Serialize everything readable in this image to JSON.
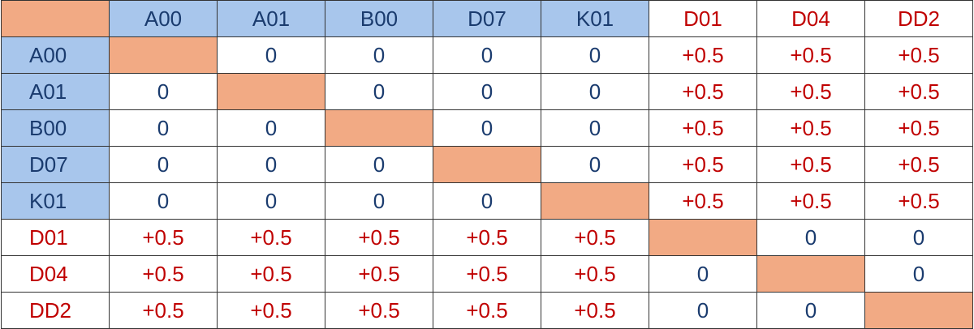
{
  "header": {
    "columns": [
      "A00",
      "A01",
      "B00",
      "D07",
      "K01",
      "D01",
      "D04",
      "DD2"
    ]
  },
  "table": {
    "rows": [
      {
        "label": "A00",
        "cells": [
          null,
          "0",
          "0",
          "0",
          "0",
          "+0.5",
          "+0.5",
          "+0.5"
        ]
      },
      {
        "label": "A01",
        "cells": [
          "0",
          null,
          "0",
          "0",
          "0",
          "+0.5",
          "+0.5",
          "+0.5"
        ]
      },
      {
        "label": "B00",
        "cells": [
          "0",
          "0",
          null,
          "0",
          "0",
          "+0.5",
          "+0.5",
          "+0.5"
        ]
      },
      {
        "label": "D07",
        "cells": [
          "0",
          "0",
          "0",
          null,
          "0",
          "+0.5",
          "+0.5",
          "+0.5"
        ]
      },
      {
        "label": "K01",
        "cells": [
          "0",
          "0",
          "0",
          "0",
          null,
          "+0.5",
          "+0.5",
          "+0.5"
        ]
      },
      {
        "label": "D01",
        "cells": [
          "+0.5",
          "+0.5",
          "+0.5",
          "+0.5",
          "+0.5",
          null,
          "0",
          "0"
        ]
      },
      {
        "label": "D04",
        "cells": [
          "+0.5",
          "+0.5",
          "+0.5",
          "+0.5",
          "+0.5",
          "0",
          null,
          "0"
        ]
      },
      {
        "label": "DD2",
        "cells": [
          "+0.5",
          "+0.5",
          "+0.5",
          "+0.5",
          "+0.5",
          "0",
          "0",
          null
        ]
      }
    ]
  }
}
